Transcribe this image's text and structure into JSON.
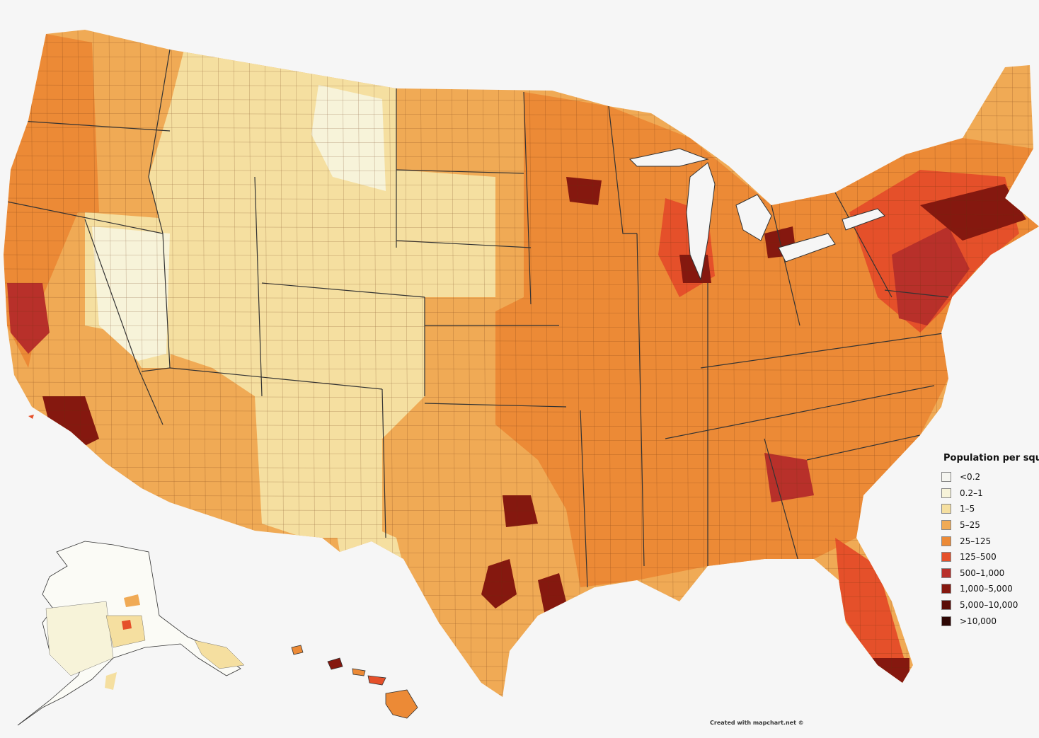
{
  "legend": {
    "title": "Population per squ",
    "items": [
      {
        "label": "<0.2",
        "color": "#f5f5f0"
      },
      {
        "label": "0.2–1",
        "color": "#f7f3d9"
      },
      {
        "label": "1–5",
        "color": "#f5dfa0"
      },
      {
        "label": "5–25",
        "color": "#f0aa55"
      },
      {
        "label": "25–125",
        "color": "#ec8a36"
      },
      {
        "label": "125–500",
        "color": "#e5502a"
      },
      {
        "label": "500–1,000",
        "color": "#b8302a"
      },
      {
        "label": "1,000–5,000",
        "color": "#85180f"
      },
      {
        "label": "5,000–10,000",
        "color": "#5a0e08"
      },
      {
        "label": ">10,000",
        "color": "#2e0704"
      }
    ]
  },
  "credit": "Created with mapchart.net ©"
}
